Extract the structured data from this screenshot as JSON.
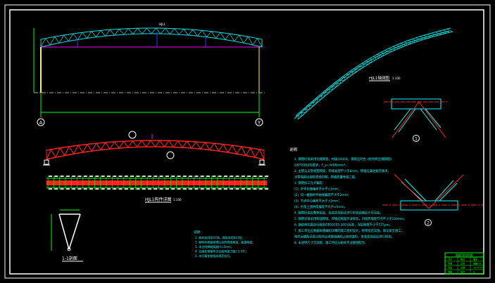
{
  "colors": {
    "background": "#000000",
    "frame": "#ffffff",
    "truss_elevation": "#00e5e5",
    "truss_detail": "#ff2020",
    "dimension": "#00ff00",
    "column": "#ffff00",
    "beam": "#ff00ff",
    "notes": "#00ffff"
  },
  "elevation": {
    "axis_left": "A",
    "axis_right": "Y",
    "truss_label": "HJL1"
  },
  "truss_detail": {
    "title": "HJL1构件详图",
    "scale": "1:100",
    "section_mark": "1"
  },
  "section": {
    "title": "1-1剖面"
  },
  "isometric": {
    "title": "HJL1轴测图",
    "scale": "1:100"
  },
  "details": {
    "node1": "1",
    "node2": "2"
  },
  "notes_small": {
    "heading": "说明:",
    "items": [
      "1. 钢材采用Q235B，焊条采用E43型；",
      "2. 钢构件表面除锈后涂防锈漆两道，面漆两道；",
      "3. 未注明焊缝高度hf=5mm；",
      "4. 支座处预埋件详见结构施工图2.5.5节；",
      "5. 未尽事宜按相关规范执行。"
    ]
  },
  "notes_main": {
    "heading": "说明",
    "items": [
      "1. 钢管桁架采用无缝钢管，材质Q345B，钢管应符合《结构用无缝钢管》",
      "   GB/T8162的要求，F_y=345N/mm²。",
      "2. 主管与支管相贯焊接，焊缝高度不小于8mm，焊缝应满足规范要求，",
      "   支管端部应按相贯线切割，焊缝质量等级二级。",
      "3. 钢管加工允许偏差：",
      "  (1). 杆件长度偏差不大于±2mm；",
      "  (2). 同一截面杆件轴线偏差不大于2mm；",
      "  (3). 节点中心偏差不大于±2mm；",
      "  (4). 桁架上弦拱度偏差不大于±5mm。",
      "4. 钢管桁架应整体组装，组装完成后应进行检验合格后方可吊装。",
      "5. 钢管对接采用等强焊接，焊缝应经超声波探伤，对接焊缝距节点不小于100mm。",
      "6. 钢结构防腐执行规范GB50205-2001标准，涂层厚度不小于125μm。",
      "7. 施工单位应根据本图编制详细的施工组织设计，经审批后实施，保证安全施工。",
      "   构件运输及吊装过程中应采取措施防止构件变形，安装完成后应进行检测。",
      "8. 未注明尺寸见详图，施工时应与相关专业图纸配合。"
    ]
  },
  "title_block": {
    "header": "钢管桁架结构图",
    "rows": [
      [
        "设计",
        "校对",
        "图号"
      ],
      [
        "审核",
        "比例",
        "结施-01"
      ],
      [
        "审定",
        "日期",
        "2013.05"
      ],
      [
        "制图",
        "版次",
        "A"
      ]
    ]
  }
}
